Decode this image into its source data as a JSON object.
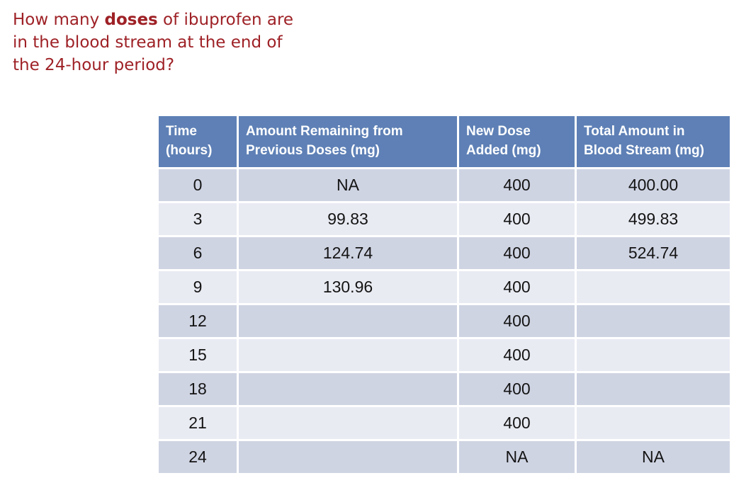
{
  "question": {
    "line1_prefix": "How many ",
    "line1_bold": "doses",
    "line1_suffix": " of ibuprofen are",
    "line2": "in the blood stream at the end of",
    "line3": "the 24-hour period?",
    "text_color": "#9E2126"
  },
  "table": {
    "headers": [
      [
        "Time",
        "(hours)"
      ],
      [
        "Amount Remaining from",
        "Previous Doses (mg)"
      ],
      [
        "New Dose",
        "Added (mg)"
      ],
      [
        "Total Amount in",
        "Blood Stream (mg)"
      ]
    ],
    "rows": [
      [
        "0",
        "NA",
        "400",
        "400.00"
      ],
      [
        "3",
        "99.83",
        "400",
        "499.83"
      ],
      [
        "6",
        "124.74",
        "400",
        "524.74"
      ],
      [
        "9",
        "130.96",
        "400",
        ""
      ],
      [
        "12",
        "",
        "400",
        ""
      ],
      [
        "15",
        "",
        "400",
        ""
      ],
      [
        "18",
        "",
        "400",
        ""
      ],
      [
        "21",
        "",
        "400",
        ""
      ],
      [
        "24",
        "",
        "NA",
        "NA"
      ]
    ],
    "colors": {
      "header_bg": "#5E80B6",
      "header_text": "#FFFFFF",
      "row_dark_bg": "#CFD4E3",
      "row_light_bg": "#E9EBF3",
      "body_text": "#141414"
    }
  }
}
